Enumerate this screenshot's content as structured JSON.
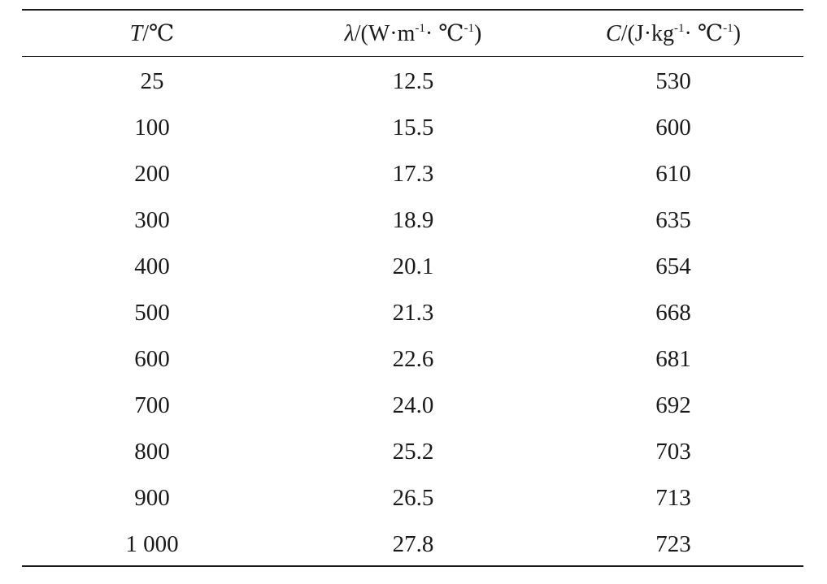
{
  "table": {
    "headers": {
      "temperature": {
        "symbol": "T",
        "unit": "/℃"
      },
      "conductivity": {
        "symbol": "λ",
        "unit_prefix": "/(W·m",
        "exp1": "-1",
        "unit_mid": "· ℃",
        "exp2": "-1",
        "unit_suffix": ")"
      },
      "specific_heat": {
        "symbol": "C",
        "unit_prefix": "/(J·kg",
        "exp1": "-1",
        "unit_mid": "· ℃",
        "exp2": "-1",
        "unit_suffix": ")"
      }
    },
    "rows": [
      {
        "t": "25",
        "lambda": "12.5",
        "c": "530"
      },
      {
        "t": "100",
        "lambda": "15.5",
        "c": "600"
      },
      {
        "t": "200",
        "lambda": "17.3",
        "c": "610"
      },
      {
        "t": "300",
        "lambda": "18.9",
        "c": "635"
      },
      {
        "t": "400",
        "lambda": "20.1",
        "c": "654"
      },
      {
        "t": "500",
        "lambda": "21.3",
        "c": "668"
      },
      {
        "t": "600",
        "lambda": "22.6",
        "c": "681"
      },
      {
        "t": "700",
        "lambda": "24.0",
        "c": "692"
      },
      {
        "t": "800",
        "lambda": "25.2",
        "c": "703"
      },
      {
        "t": "900",
        "lambda": "26.5",
        "c": "713"
      },
      {
        "t": "1 000",
        "lambda": "27.8",
        "c": "723"
      }
    ]
  }
}
